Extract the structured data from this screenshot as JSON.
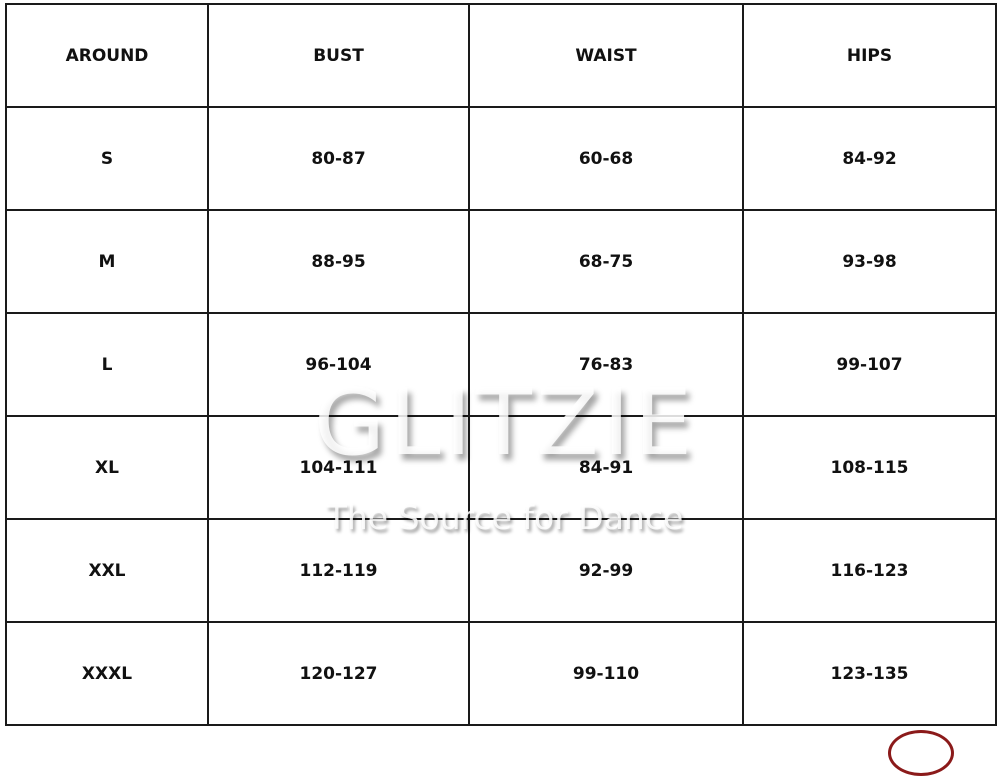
{
  "table": {
    "headers": [
      "AROUND",
      "BUST",
      "WAIST",
      "HIPS"
    ],
    "rows": [
      [
        "S",
        "80-87",
        "60-68",
        "84-92"
      ],
      [
        "M",
        "88-95",
        "68-75",
        "93-98"
      ],
      [
        "L",
        "96-104",
        "76-83",
        "99-107"
      ],
      [
        "XL",
        "104-111",
        "84-91",
        "108-115"
      ],
      [
        "XXL",
        "112-119",
        "92-99",
        "116-123"
      ],
      [
        "XXXL",
        "120-127",
        "99-110",
        "123-135"
      ]
    ]
  },
  "watermark": {
    "title": "GLITZIE",
    "subtitle": "The Source for Dance"
  }
}
